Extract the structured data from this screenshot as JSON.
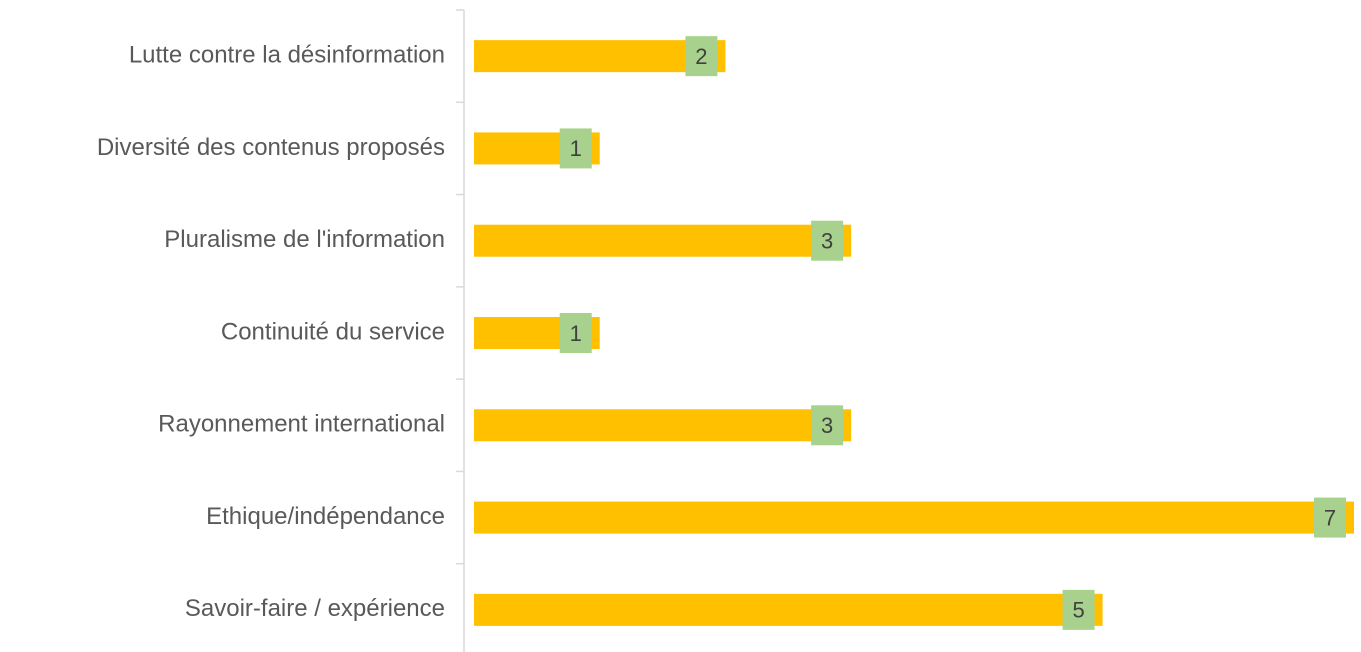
{
  "chart_data": {
    "type": "bar",
    "orientation": "horizontal",
    "categories": [
      "Lutte contre la désinformation",
      "Diversité des contenus proposés",
      "Pluralisme de l'information",
      "Continuité du service",
      "Rayonnement international",
      "Ethique/indépendance",
      "Savoir-faire / expérience"
    ],
    "values": [
      2,
      1,
      3,
      1,
      3,
      7,
      5
    ],
    "color": "#ffc000",
    "label_color": "#a9d18e",
    "xlim": [
      0,
      7
    ]
  }
}
